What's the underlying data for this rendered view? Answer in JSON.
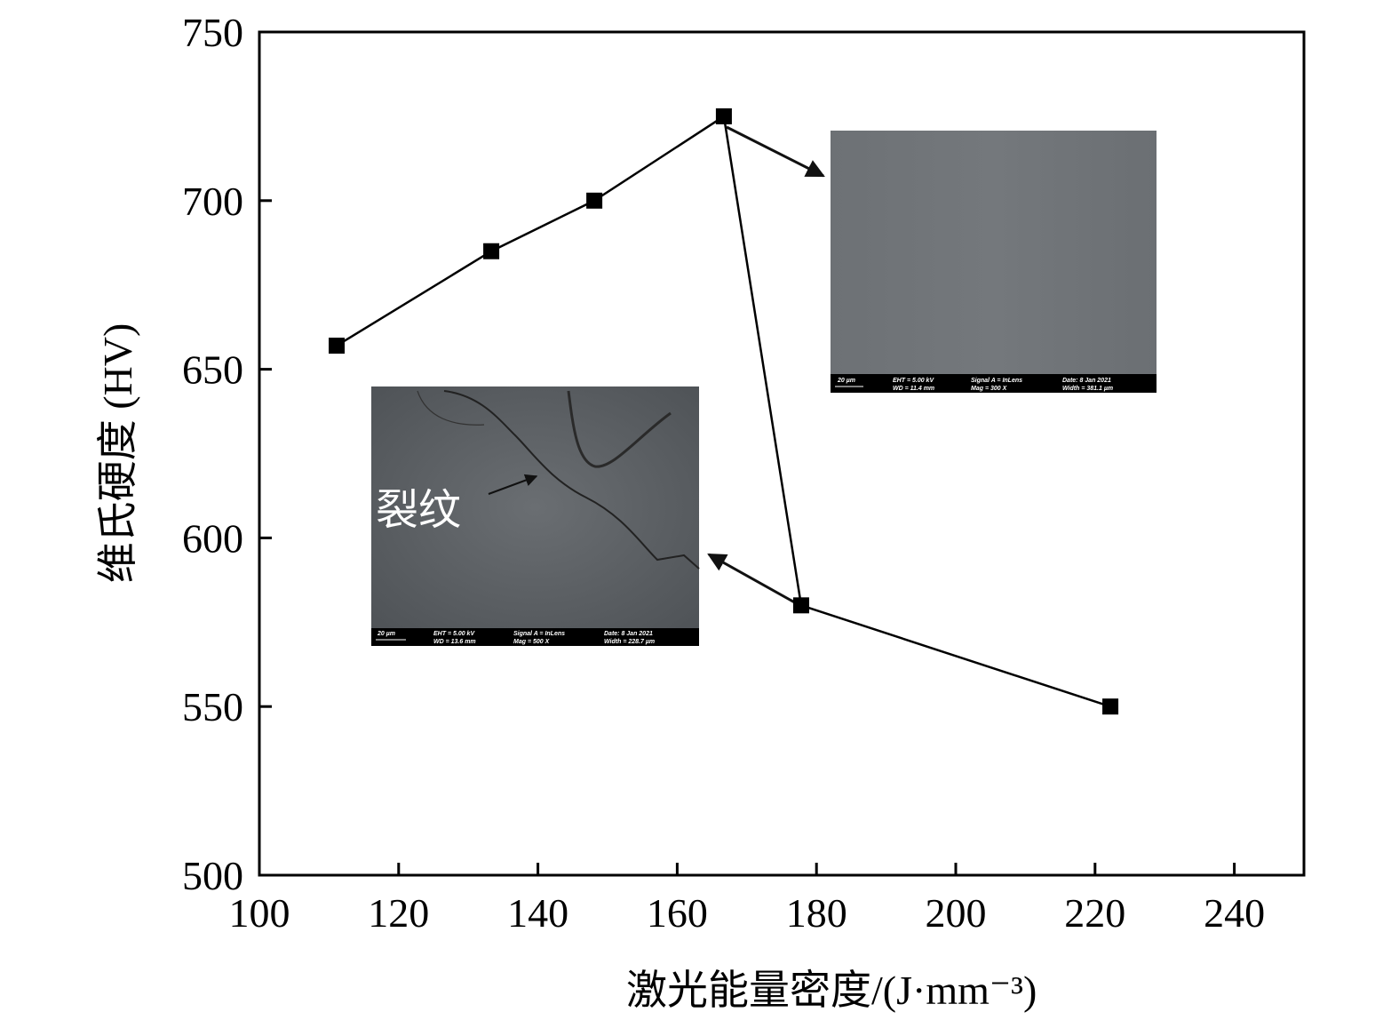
{
  "chart_data": {
    "type": "line",
    "x_label": "激光能量密度/(J·mm⁻³)",
    "y_label": "维氏硬度 (HV)",
    "x": [
      111.1,
      133.3,
      148.1,
      166.7,
      177.8,
      222.2
    ],
    "series": [
      {
        "color": "#000000",
        "marker": "square",
        "values": [
          657,
          685,
          700,
          725,
          580,
          550
        ]
      }
    ],
    "xlim": [
      100,
      250
    ],
    "xticks": [
      100,
      120,
      140,
      160,
      180,
      200,
      220,
      240
    ],
    "ylim": [
      500,
      750
    ],
    "yticks": [
      500,
      550,
      600,
      650,
      700,
      750
    ],
    "grid": false,
    "crack_label": "裂纹",
    "sem_images": [
      {
        "scale": "20 µm",
        "labels": [
          "EHT = 5.00 kV",
          "WD = 11.4 mm",
          "Signal A = InLens",
          "Mag = 300 X",
          "Date: 8 Jan 2021",
          "Width = 381.1 µm"
        ]
      },
      {
        "scale": "20 µm",
        "labels": [
          "EHT = 5.00 kV",
          "WD = 13.6 mm",
          "Signal A = InLens",
          "Mag = 500 X",
          "Date: 8 Jan 2021",
          "Width = 228.7 µm"
        ]
      }
    ]
  }
}
